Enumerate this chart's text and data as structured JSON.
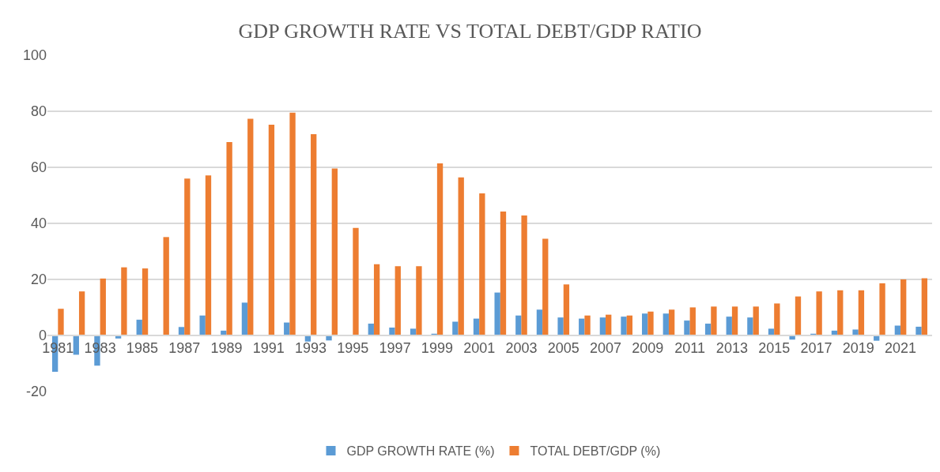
{
  "chart_data": {
    "type": "bar",
    "title": "GDP GROWTH RATE VS TOTAL DEBT/GDP RATIO",
    "categories": [
      "1981",
      null,
      "1983",
      null,
      "1985",
      null,
      "1987",
      null,
      "1989",
      null,
      "1991",
      null,
      "1993",
      null,
      "1995",
      null,
      "1997",
      null,
      "1999",
      null,
      "2001",
      null,
      "2003",
      null,
      "2005",
      null,
      "2007",
      null,
      "2009",
      null,
      "2011",
      null,
      "2013",
      null,
      "2015",
      null,
      "2017",
      null,
      "2019",
      null,
      "2021",
      null
    ],
    "series": [
      {
        "name": "GDP GROWTH RATE (%)",
        "color": "#5b9bd5",
        "values": [
          -13.0,
          -6.9,
          -10.8,
          -1.1,
          5.6,
          0,
          3.0,
          7.1,
          1.7,
          11.7,
          0,
          4.6,
          -2.2,
          -1.8,
          0,
          4.2,
          2.8,
          2.4,
          0.6,
          4.9,
          6.0,
          15.3,
          7.1,
          9.2,
          6.4,
          6.0,
          6.4,
          6.7,
          7.8,
          7.8,
          5.3,
          4.2,
          6.7,
          6.4,
          2.4,
          -1.5,
          0.6,
          1.7,
          2.1,
          -1.9,
          3.5,
          3.1
        ]
      },
      {
        "name": "TOTAL DEBT/GDP (%)",
        "color": "#ed7d31",
        "values": [
          9.5,
          15.7,
          20.3,
          24.3,
          23.9,
          35.1,
          56.0,
          57.1,
          69.0,
          77.3,
          75.2,
          79.5,
          71.8,
          59.6,
          38.4,
          25.4,
          24.7,
          24.7,
          61.4,
          56.4,
          50.7,
          44.2,
          42.8,
          34.5,
          18.2,
          7.1,
          7.4,
          7.1,
          8.5,
          9.2,
          10.0,
          10.3,
          10.3,
          10.3,
          11.4,
          13.9,
          15.7,
          16.1,
          16.1,
          18.6,
          20.0,
          20.4
        ]
      }
    ],
    "ylim": [
      -20,
      100
    ],
    "yticks": [
      -20,
      0,
      20,
      40,
      60,
      80,
      100
    ],
    "grid": "y",
    "legend": "bottom"
  }
}
